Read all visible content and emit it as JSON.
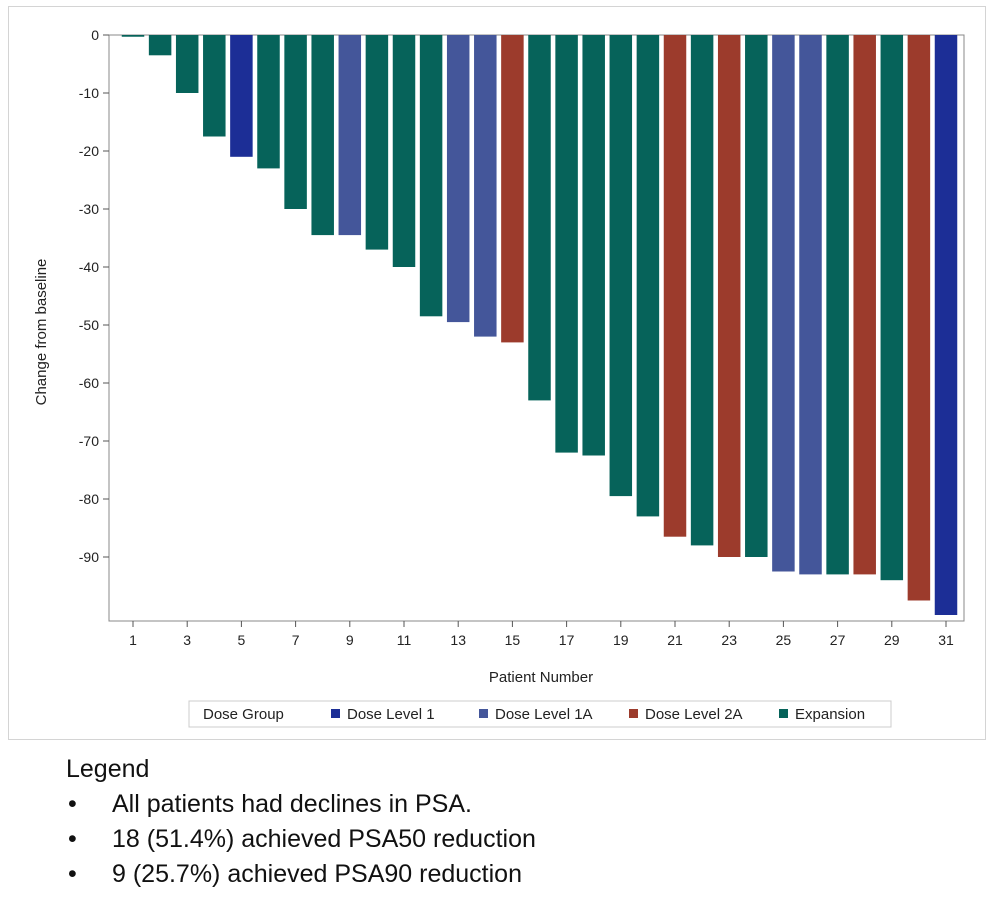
{
  "chart_data": {
    "type": "bar",
    "title": "",
    "xlabel": "Patient Number",
    "ylabel": "Change from baseline",
    "ylim": [
      -100,
      0
    ],
    "yticks": [
      0,
      -10,
      -20,
      -30,
      -40,
      -50,
      -60,
      -70,
      -80,
      -90
    ],
    "xticks": [
      1,
      3,
      5,
      7,
      9,
      11,
      13,
      15,
      17,
      19,
      21,
      23,
      25,
      27,
      29,
      31
    ],
    "categories": [
      1,
      2,
      3,
      4,
      5,
      6,
      7,
      8,
      9,
      10,
      11,
      12,
      13,
      14,
      15,
      16,
      17,
      18,
      19,
      20,
      21,
      22,
      23,
      24,
      25,
      26,
      27,
      28,
      29,
      30,
      31
    ],
    "values": [
      -0.3,
      -3.5,
      -10,
      -17.5,
      -21,
      -23,
      -30,
      -34.5,
      -34.5,
      -37,
      -40,
      -48.5,
      -49.5,
      -52,
      -53,
      -63,
      -72,
      -72.5,
      -79.5,
      -83,
      -86.5,
      -88,
      -90,
      -90,
      -92.5,
      -93,
      -93,
      -93,
      -94,
      -97.5,
      -100
    ],
    "groups": [
      "Expansion",
      "Expansion",
      "Expansion",
      "Expansion",
      "Dose Level 1",
      "Expansion",
      "Expansion",
      "Expansion",
      "Dose Level 1A",
      "Expansion",
      "Expansion",
      "Expansion",
      "Dose Level 1A",
      "Dose Level 1A",
      "Dose Level 2A",
      "Expansion",
      "Expansion",
      "Expansion",
      "Expansion",
      "Expansion",
      "Dose Level 2A",
      "Expansion",
      "Dose Level 2A",
      "Expansion",
      "Dose Level 1A",
      "Dose Level 1A",
      "Expansion",
      "Dose Level 2A",
      "Expansion",
      "Dose Level 2A",
      "Dose Level 1"
    ],
    "legend": {
      "title": "Dose Group",
      "placement": "bottom",
      "entries": [
        {
          "name": "Dose Level 1",
          "color": "#1c2e96"
        },
        {
          "name": "Dose Level 1A",
          "color": "#44569a"
        },
        {
          "name": "Dose Level 2A",
          "color": "#9c3b2c"
        },
        {
          "name": "Expansion",
          "color": "#06635a"
        }
      ]
    }
  },
  "notes": {
    "title": "Legend",
    "bullet_symbol": "•",
    "items": [
      "All patients had declines in PSA.",
      "18 (51.4%) achieved PSA50 reduction",
      "9 (25.7%) achieved PSA90 reduction"
    ]
  }
}
